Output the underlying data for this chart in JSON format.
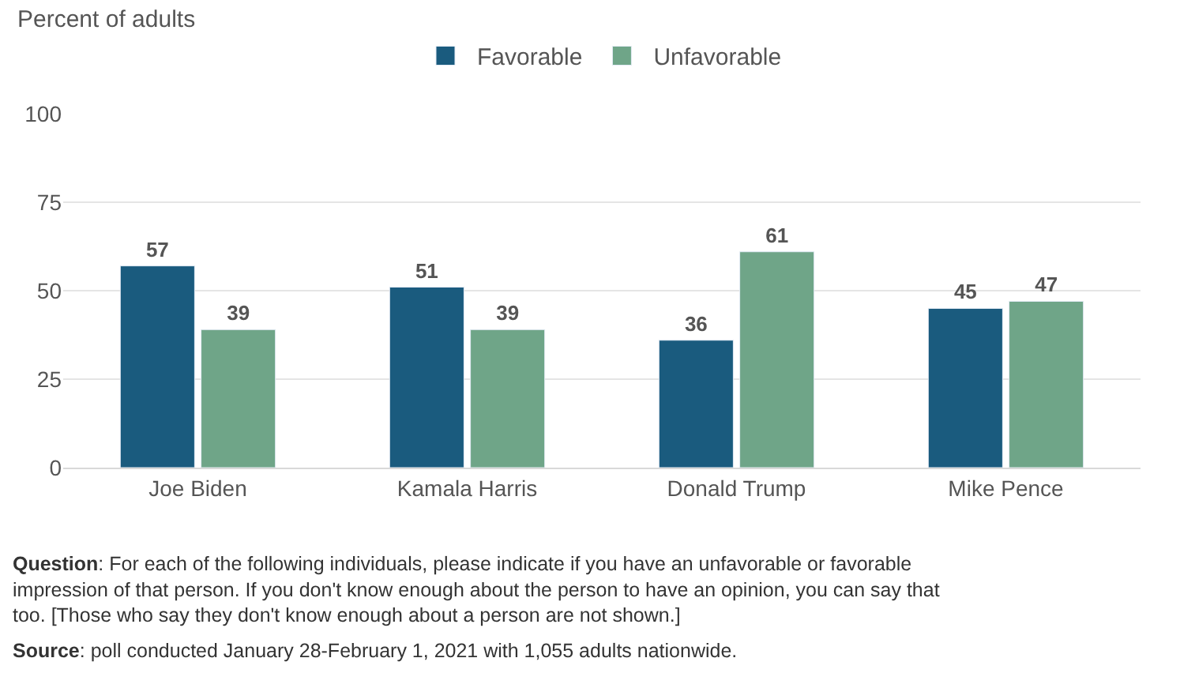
{
  "chart_data": {
    "type": "bar",
    "subtitle": "Percent of adults",
    "categories": [
      "Joe Biden",
      "Kamala Harris",
      "Donald Trump",
      "Mike Pence"
    ],
    "series": [
      {
        "name": "Favorable",
        "color": "#1a5b7e",
        "values": [
          57,
          51,
          36,
          45
        ]
      },
      {
        "name": "Unfavorable",
        "color": "#6fa588",
        "values": [
          39,
          39,
          61,
          47
        ]
      }
    ],
    "ylim": [
      0,
      100
    ],
    "yticks": [
      0,
      25,
      50,
      75,
      100
    ],
    "grid": "y",
    "legend": "top",
    "data_labels": true,
    "annotations": [
      "Question: For each of the following individuals, please indicate if you have an unfavorable or favorable impression of that person. If you don't know enough about the person to have an opinion, you can say that too. [Those who say they don't know enough about a person are not shown.]",
      "Source: poll conducted January 28-February 1, 2021 with 1,055 adults nationwide."
    ]
  }
}
